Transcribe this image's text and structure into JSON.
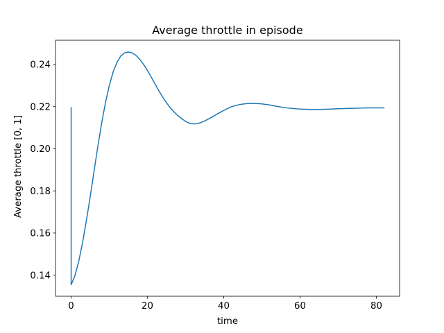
{
  "chart_data": {
    "type": "line",
    "title": "Average throttle in episode",
    "xlabel": "time",
    "ylabel": "Average throttle [0, 1]",
    "xlim": [
      -4.1,
      86.1
    ],
    "ylim": [
      0.13,
      0.2515
    ],
    "xticks": [
      0,
      20,
      40,
      60,
      80
    ],
    "xtick_labels": [
      "0",
      "20",
      "40",
      "60",
      "80"
    ],
    "yticks": [
      0.14,
      0.16,
      0.18,
      0.2,
      0.22,
      0.24
    ],
    "ytick_labels": [
      "0.14",
      "0.16",
      "0.18",
      "0.20",
      "0.22",
      "0.24"
    ],
    "grid": false,
    "series": [
      {
        "color": "#1f77b4",
        "x": [
          0,
          0,
          1,
          2,
          3,
          4,
          5,
          6,
          7,
          8,
          9,
          10,
          11,
          12,
          13,
          14,
          15,
          16,
          17,
          18,
          19,
          20,
          21,
          22,
          23,
          24,
          25,
          26,
          27,
          28,
          29,
          30,
          31,
          32,
          33,
          34,
          35,
          36,
          37,
          38,
          39,
          40,
          41,
          42,
          43,
          44,
          45,
          46,
          47,
          48,
          49,
          50,
          52,
          54,
          56,
          58,
          60,
          62,
          64,
          66,
          68,
          70,
          72,
          74,
          76,
          78,
          80,
          82
        ],
        "y": [
          0.2195,
          0.1355,
          0.1398,
          0.1466,
          0.1555,
          0.1659,
          0.1773,
          0.1893,
          0.2011,
          0.2122,
          0.2219,
          0.23,
          0.2364,
          0.241,
          0.244,
          0.2455,
          0.2459,
          0.2455,
          0.2443,
          0.2424,
          0.24,
          0.2371,
          0.234,
          0.2307,
          0.2275,
          0.2245,
          0.2218,
          0.2194,
          0.2174,
          0.2157,
          0.2143,
          0.213,
          0.2121,
          0.2118,
          0.2119,
          0.2124,
          0.2132,
          0.2141,
          0.2151,
          0.2162,
          0.2172,
          0.2182,
          0.2191,
          0.2199,
          0.2205,
          0.2209,
          0.2212,
          0.2214,
          0.2215,
          0.2215,
          0.2214,
          0.2213,
          0.2208,
          0.2201,
          0.2195,
          0.2191,
          0.2188,
          0.2187,
          0.2186,
          0.2187,
          0.2188,
          0.219,
          0.2191,
          0.2192,
          0.2193,
          0.2194,
          0.2194,
          0.2194
        ]
      }
    ]
  }
}
